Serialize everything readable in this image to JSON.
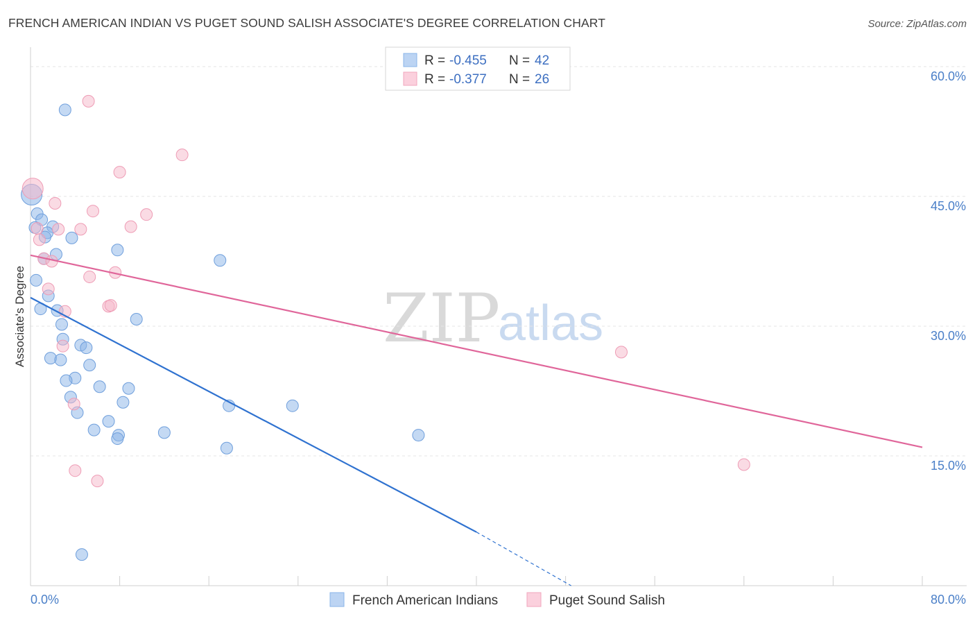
{
  "chart_data": {
    "type": "scatter",
    "title": "FRENCH AMERICAN INDIAN VS PUGET SOUND SALISH ASSOCIATE'S DEGREE CORRELATION CHART",
    "source": "Source: ZipAtlas.com",
    "ylabel": "Associate's Degree",
    "xlim": [
      0,
      80
    ],
    "ylim": [
      0,
      60
    ],
    "x_ticks": [
      {
        "value": 0,
        "label": "0.0%"
      },
      {
        "value": 80,
        "label": "80.0%"
      }
    ],
    "y_ticks": [
      {
        "value": 15,
        "label": "15.0%"
      },
      {
        "value": 30,
        "label": "30.0%"
      },
      {
        "value": 45,
        "label": "45.0%"
      },
      {
        "value": 60,
        "label": "60.0%"
      }
    ],
    "watermark": {
      "zip": "ZIP",
      "atlas": "atlas"
    },
    "legend": [
      {
        "r_label": "R = ",
        "r_value": "-0.455",
        "n_label": "N = ",
        "n_value": "42"
      },
      {
        "r_label": "R = ",
        "r_value": "-0.377",
        "n_label": "N = ",
        "n_value": "26"
      }
    ],
    "series": [
      {
        "name": "French American Indians",
        "color": "#8ab4e8",
        "stroke": "#6f9fdc",
        "line_color": "#2f72d0",
        "trend": {
          "x1": 0,
          "y1": 33.3,
          "x2": 40,
          "y2": 6.2,
          "dash_to_x": 48.5,
          "dash_to_y": 0
        },
        "points": [
          [
            0.1,
            45.2
          ],
          [
            3.1,
            55.0
          ],
          [
            0.6,
            43.0
          ],
          [
            1.0,
            42.3
          ],
          [
            2.0,
            41.5
          ],
          [
            1.5,
            40.8
          ],
          [
            3.7,
            40.2
          ],
          [
            1.3,
            40.3
          ],
          [
            7.8,
            38.8
          ],
          [
            0.4,
            41.4
          ],
          [
            2.3,
            38.3
          ],
          [
            1.2,
            37.8
          ],
          [
            17.0,
            37.6
          ],
          [
            0.5,
            35.3
          ],
          [
            1.6,
            33.5
          ],
          [
            0.9,
            32.0
          ],
          [
            2.4,
            31.8
          ],
          [
            9.5,
            30.8
          ],
          [
            2.8,
            30.2
          ],
          [
            2.9,
            28.5
          ],
          [
            4.5,
            27.8
          ],
          [
            5.0,
            27.5
          ],
          [
            1.8,
            26.3
          ],
          [
            2.7,
            26.1
          ],
          [
            5.3,
            25.5
          ],
          [
            4.0,
            24.0
          ],
          [
            3.2,
            23.7
          ],
          [
            6.2,
            23.0
          ],
          [
            8.8,
            22.8
          ],
          [
            3.6,
            21.8
          ],
          [
            8.3,
            21.2
          ],
          [
            17.8,
            20.8
          ],
          [
            23.5,
            20.8
          ],
          [
            4.2,
            20.0
          ],
          [
            7.0,
            19.0
          ],
          [
            5.7,
            18.0
          ],
          [
            7.9,
            17.4
          ],
          [
            12.0,
            17.7
          ],
          [
            34.8,
            17.4
          ],
          [
            7.8,
            17.0
          ],
          [
            17.6,
            15.9
          ],
          [
            4.6,
            3.6
          ]
        ]
      },
      {
        "name": "Puget Sound Salish",
        "color": "#f6b8ca",
        "stroke": "#ee9cb5",
        "line_color": "#e0669a",
        "trend": {
          "x1": 0,
          "y1": 38.2,
          "x2": 80,
          "y2": 16.0
        },
        "points": [
          [
            5.2,
            56.0
          ],
          [
            13.6,
            49.8
          ],
          [
            8.0,
            47.8
          ],
          [
            0.2,
            45.9
          ],
          [
            2.2,
            44.2
          ],
          [
            5.6,
            43.3
          ],
          [
            10.4,
            42.9
          ],
          [
            9.0,
            41.5
          ],
          [
            0.6,
            41.3
          ],
          [
            2.5,
            41.2
          ],
          [
            4.5,
            41.2
          ],
          [
            0.8,
            40.0
          ],
          [
            1.2,
            37.8
          ],
          [
            1.9,
            37.5
          ],
          [
            7.6,
            36.2
          ],
          [
            5.3,
            35.7
          ],
          [
            1.6,
            34.3
          ],
          [
            7.0,
            32.3
          ],
          [
            7.2,
            32.4
          ],
          [
            3.1,
            31.7
          ],
          [
            53.0,
            27.0
          ],
          [
            2.9,
            27.7
          ],
          [
            3.9,
            21.0
          ],
          [
            64.0,
            14.0
          ],
          [
            4.0,
            13.3
          ],
          [
            6.0,
            12.1
          ]
        ]
      }
    ]
  }
}
